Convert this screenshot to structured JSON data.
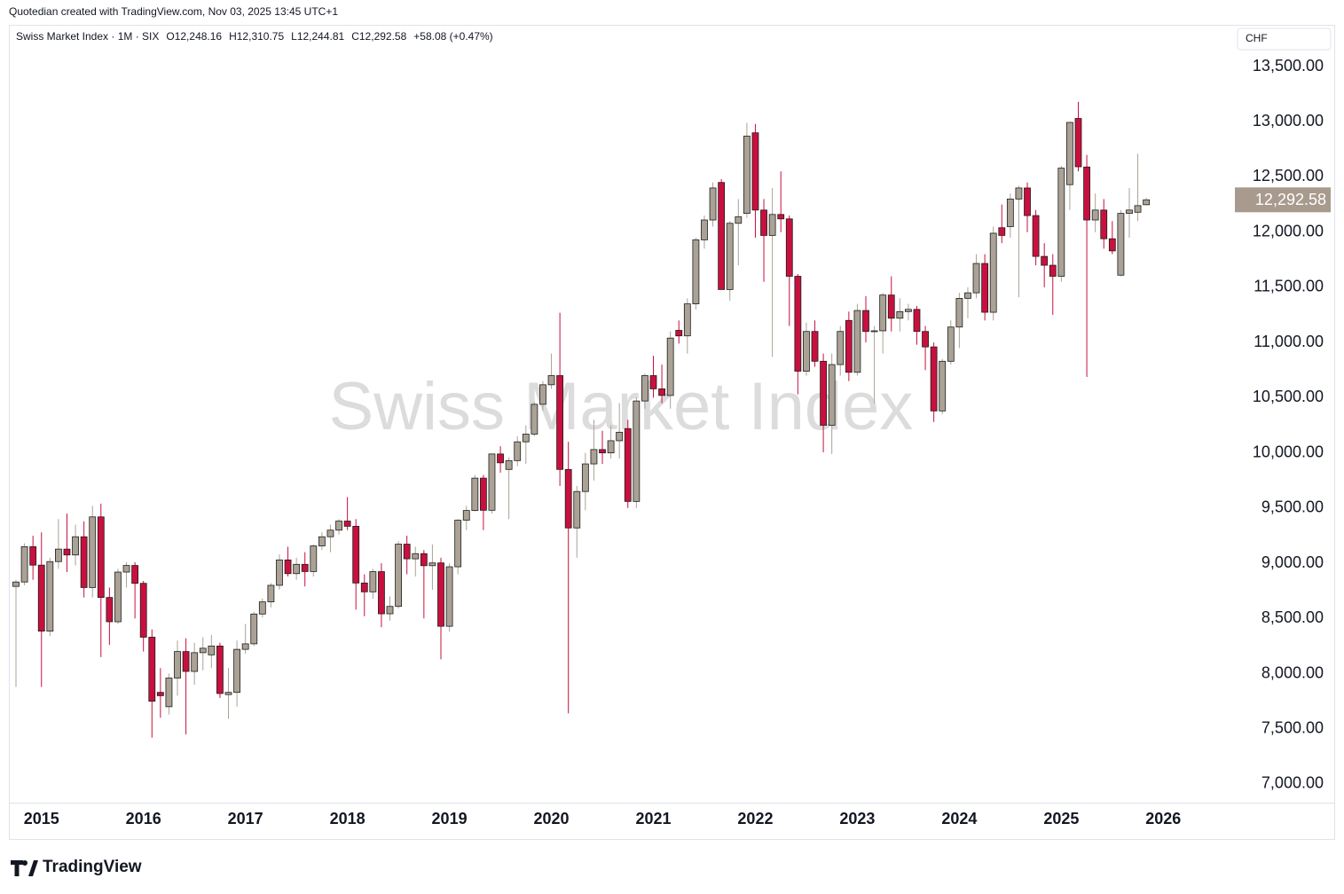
{
  "header": {
    "credit": "Quotedian created with TradingView.com, Nov 03, 2025 13:45 UTC+1"
  },
  "footer": {
    "brand": "TradingView"
  },
  "chart_data": {
    "type": "candlestick",
    "title": "Swiss Market Index",
    "symbol_line": "Swiss Market Index · 1M · SIX",
    "ohlc_labels": [
      "O12,248.16",
      "H12,310.75",
      "L12,244.81",
      "C12,292.58",
      "+58.08 (+0.47%)"
    ],
    "currency": "CHF",
    "up_color": "#aba296",
    "down_color": "#c8103e",
    "categories": [
      null,
      null,
      null,
      "2015",
      null,
      null,
      null,
      null,
      null,
      null,
      null,
      null,
      null,
      null,
      null,
      "2016",
      null,
      null,
      null,
      null,
      null,
      null,
      null,
      null,
      null,
      null,
      null,
      "2017",
      null,
      null,
      null,
      null,
      null,
      null,
      null,
      null,
      null,
      null,
      null,
      "2018",
      null,
      null,
      null,
      null,
      null,
      null,
      null,
      null,
      null,
      null,
      null,
      "2019",
      null,
      null,
      null,
      null,
      null,
      null,
      null,
      null,
      null,
      null,
      null,
      "2020",
      null,
      null,
      null,
      null,
      null,
      null,
      null,
      null,
      null,
      null,
      null,
      "2021",
      null,
      null,
      null,
      null,
      null,
      null,
      null,
      null,
      null,
      null,
      null,
      "2022",
      null,
      null,
      null,
      null,
      null,
      null,
      null,
      null,
      null,
      null,
      null,
      "2023",
      null,
      null,
      null,
      null,
      null,
      null,
      null,
      null,
      null,
      null,
      null,
      "2024",
      null,
      null,
      null,
      null,
      null,
      null,
      null,
      null,
      null,
      null,
      null,
      "2025",
      null,
      null,
      null,
      null,
      null,
      null,
      null,
      null,
      null,
      null,
      null,
      "2026"
    ],
    "open": [
      8790,
      8830,
      9150,
      8983,
      8385,
      9015,
      9128,
      9075,
      9240,
      8780,
      9420,
      8690,
      8470,
      8920,
      8980,
      8818,
      8330,
      7830,
      7700,
      7960,
      8200,
      8020,
      8190,
      8170,
      8250,
      7810,
      7830,
      8220,
      8270,
      8540,
      8650,
      8800,
      9030,
      8906,
      8990,
      8925,
      9157,
      9240,
      9300,
      9382,
      9335,
      8821,
      8741,
      8924,
      8542,
      8609,
      9173,
      9040,
      9087,
      8978,
      9003,
      8429,
      8968,
      9390,
      9478,
      9771,
      9480,
      9990,
      9850,
      9930,
      10100,
      10170,
      10440,
      10617,
      10700,
      9850,
      9320,
      9650,
      9900,
      10030,
      10000,
      10110,
      10220,
      9560,
      10470,
      10700,
      10580,
      10520,
      11110,
      11060,
      11350,
      11930,
      12110,
      12450,
      11480,
      12080,
      12170,
      12900,
      12200,
      11970,
      12160,
      12120,
      11600,
      10740,
      11100,
      10830,
      10250,
      10800,
      11200,
      10730,
      11290,
      11100,
      11106,
      11430,
      11220,
      11280,
      11300,
      11100,
      10960,
      10380,
      10830,
      11140,
      11400,
      11450,
      11716,
      11274,
      12040,
      12050,
      12300,
      12400,
      12150,
      11780,
      11700,
      11600,
      12430,
      13030,
      12590,
      12110,
      12200,
      11940,
      11610,
      12170,
      12180,
      12248.16,
      null,
      null
    ],
    "high": [
      8850,
      9180,
      9250,
      9280,
      9050,
      9400,
      9450,
      9350,
      9380,
      9520,
      9540,
      8780,
      8950,
      9010,
      9010,
      8840,
      8400,
      8050,
      8000,
      8300,
      8320,
      8280,
      8330,
      8350,
      8280,
      8050,
      8300,
      8450,
      8560,
      8680,
      8820,
      9080,
      9150,
      9050,
      9100,
      9170,
      9280,
      9350,
      9400,
      9600,
      9400,
      8900,
      8950,
      9000,
      8700,
      9200,
      9250,
      9150,
      9120,
      9170,
      9050,
      9000,
      9400,
      9520,
      9800,
      9800,
      9990,
      10060,
      9960,
      10150,
      10250,
      10460,
      10650,
      10900,
      11270,
      10100,
      9700,
      10000,
      10300,
      10200,
      10250,
      10450,
      10300,
      10500,
      10720,
      10880,
      10800,
      11100,
      11200,
      11400,
      11950,
      12150,
      12450,
      12480,
      12100,
      12300,
      12990,
      12980,
      12300,
      12400,
      12550,
      12150,
      11620,
      11180,
      11200,
      10900,
      10900,
      11150,
      11280,
      11350,
      11420,
      11150,
      11450,
      11600,
      11400,
      11350,
      11330,
      11150,
      11000,
      10850,
      11200,
      11450,
      11500,
      11800,
      11800,
      12050,
      12250,
      12350,
      12420,
      12450,
      12200,
      11900,
      11800,
      12600,
      13000,
      13180,
      12700,
      12350,
      12300,
      12100,
      12200,
      12400,
      12710,
      12310.75,
      null,
      null
    ],
    "low": [
      7880,
      8800,
      8850,
      7880,
      8340,
      8950,
      8920,
      8980,
      8690,
      8690,
      8150,
      8260,
      8450,
      8780,
      8500,
      8200,
      7420,
      7600,
      7630,
      7800,
      7450,
      7900,
      8030,
      8050,
      7780,
      7590,
      7700,
      8180,
      8250,
      8510,
      8600,
      8760,
      8880,
      8850,
      8790,
      8880,
      9120,
      9100,
      9260,
      9300,
      8580,
      8520,
      8680,
      8420,
      8480,
      8590,
      8900,
      8880,
      8500,
      8760,
      8130,
      8380,
      8900,
      9300,
      9470,
      9300,
      9450,
      9820,
      9400,
      9880,
      9900,
      10150,
      10380,
      10580,
      9700,
      7640,
      9050,
      9480,
      9750,
      9900,
      9950,
      9950,
      9500,
      9500,
      10400,
      10500,
      10450,
      10400,
      10990,
      10900,
      11300,
      11850,
      12050,
      11550,
      11380,
      11700,
      12130,
      11950,
      11550,
      10870,
      12000,
      11150,
      10530,
      10700,
      10780,
      10005,
      9990,
      10700,
      10650,
      10700,
      11000,
      10450,
      10900,
      11100,
      11100,
      11200,
      10980,
      10750,
      10280,
      10350,
      10800,
      10950,
      11220,
      11400,
      11200,
      11200,
      11900,
      11950,
      11410,
      12000,
      11700,
      11500,
      11250,
      11550,
      12200,
      12550,
      10688,
      12000,
      11850,
      11800,
      11600,
      11950,
      12100,
      12244.81,
      null,
      null
    ],
    "close": [
      8830,
      9150,
      8983,
      8385,
      9015,
      9128,
      9075,
      9240,
      8780,
      9420,
      8690,
      8470,
      8920,
      8980,
      8818,
      8330,
      7750,
      7800,
      7960,
      8200,
      8020,
      8190,
      8230,
      8250,
      7820,
      7830,
      8220,
      8270,
      8540,
      8650,
      8800,
      9030,
      8906,
      8990,
      8925,
      9157,
      9240,
      9300,
      9382,
      9335,
      8821,
      8741,
      8924,
      8542,
      8609,
      9173,
      9040,
      9087,
      8978,
      9003,
      8429,
      8968,
      9390,
      9478,
      9771,
      9480,
      9990,
      9910,
      9930,
      10100,
      10170,
      10440,
      10617,
      10700,
      9850,
      9320,
      9650,
      9900,
      10030,
      10000,
      10110,
      10187,
      9560,
      10470,
      10700,
      10580,
      10520,
      11040,
      11060,
      11350,
      11930,
      12110,
      12400,
      11480,
      12080,
      12140,
      12870,
      12200,
      11970,
      12160,
      12120,
      11600,
      10740,
      11100,
      10830,
      10250,
      10800,
      11100,
      10730,
      11290,
      11100,
      11106,
      11430,
      11220,
      11280,
      11300,
      11100,
      10960,
      10380,
      10830,
      11140,
      11400,
      11450,
      11716,
      11274,
      11990,
      11970,
      12300,
      12400,
      12150,
      11780,
      11700,
      11600,
      12580,
      12994,
      12592,
      12110,
      12200,
      11940,
      11830,
      12170,
      12200,
      12240,
      12292.58,
      null,
      null
    ],
    "ylim": [
      6831,
      13862
    ],
    "yticks": [
      {
        "value": 7000,
        "label": "7,000.00"
      },
      {
        "value": 7500,
        "label": "7,500.00"
      },
      {
        "value": 8000,
        "label": "8,000.00"
      },
      {
        "value": 8500,
        "label": "8,500.00"
      },
      {
        "value": 9000,
        "label": "9,000.00"
      },
      {
        "value": 9500,
        "label": "9,500.00"
      },
      {
        "value": 10000,
        "label": "10,000.00"
      },
      {
        "value": 10500,
        "label": "10,500.00"
      },
      {
        "value": 11000,
        "label": "11,000.00"
      },
      {
        "value": 11500,
        "label": "11,500.00"
      },
      {
        "value": 12000,
        "label": "12,000.00"
      },
      {
        "value": 12500,
        "label": "12,500.00"
      },
      {
        "value": 13000,
        "label": "13,000.00"
      },
      {
        "value": 13500,
        "label": "13,500.00"
      }
    ],
    "last_price": {
      "value": 12292.58,
      "label": "12,292.58"
    }
  }
}
